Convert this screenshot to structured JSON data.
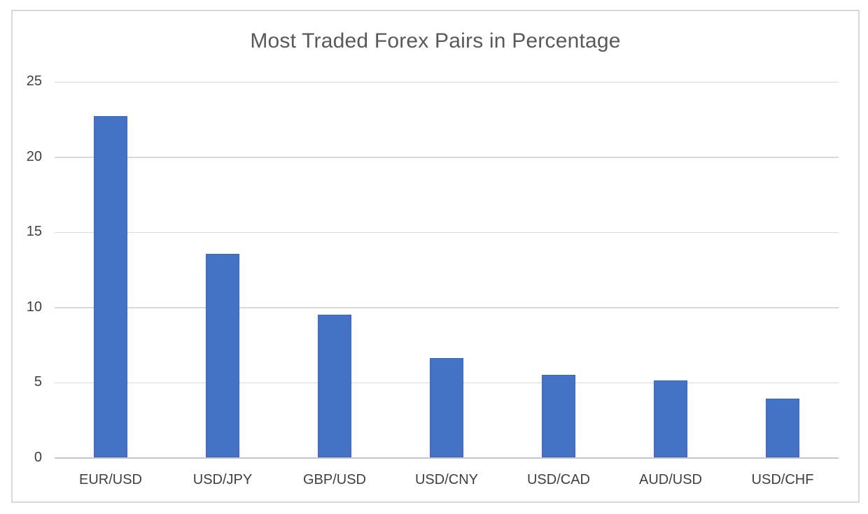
{
  "chart_data": {
    "type": "bar",
    "title": "Most Traded Forex Pairs in Percentage",
    "categories": [
      "EUR/USD",
      "USD/JPY",
      "GBP/USD",
      "USD/CNY",
      "USD/CAD",
      "AUD/USD",
      "USD/CHF"
    ],
    "values": [
      22.7,
      13.5,
      9.5,
      6.6,
      5.5,
      5.1,
      3.9
    ],
    "xlabel": "",
    "ylabel": "",
    "ylim": [
      0,
      25
    ],
    "yticks": [
      0,
      5,
      10,
      15,
      20,
      25
    ],
    "grid": true,
    "legend_position": "none",
    "bar_color": "#4472C4",
    "bar_border_color": "#3A67BE"
  },
  "style": {
    "page_background": "#FFFFFF",
    "frame_border_color": "#D9D9D9",
    "gridline_color": "#D9D9D9",
    "axis_line_color": "#C6C6C6",
    "title_color": "#595959",
    "y_tick_label_color": "#404040",
    "x_tick_label_color": "#3F3F3F"
  }
}
